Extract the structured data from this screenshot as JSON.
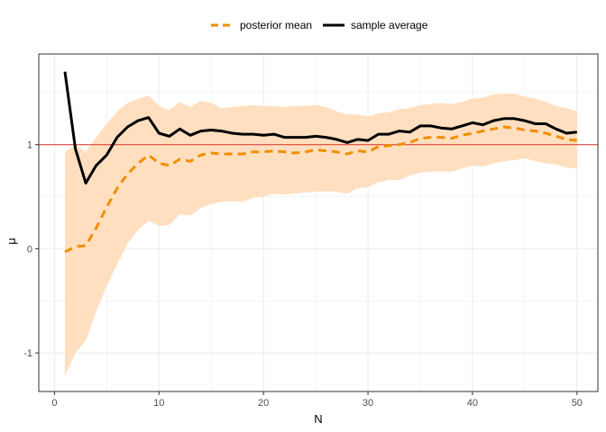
{
  "chart_data": {
    "type": "line",
    "title": "",
    "xlabel": "N",
    "ylabel": "μ",
    "xlim": [
      -1.5,
      52
    ],
    "ylim": [
      -1.37,
      1.87
    ],
    "x_ticks": [
      0,
      10,
      20,
      30,
      40,
      50
    ],
    "y_ticks": [
      -1,
      0,
      1
    ],
    "grid": true,
    "legend_position": "top",
    "reference_line": {
      "y": 1,
      "color": "#d73027"
    },
    "band": {
      "color": "#ffdfbf",
      "x": [
        1,
        2,
        3,
        4,
        5,
        6,
        7,
        8,
        9,
        10,
        11,
        12,
        13,
        14,
        15,
        16,
        17,
        18,
        19,
        20,
        21,
        22,
        23,
        24,
        25,
        26,
        27,
        28,
        29,
        30,
        31,
        32,
        33,
        34,
        35,
        36,
        37,
        38,
        39,
        40,
        41,
        42,
        43,
        44,
        45,
        46,
        47,
        48,
        49,
        50
      ],
      "lower": [
        -1.22,
        -1.0,
        -0.88,
        -0.6,
        -0.36,
        -0.15,
        0.05,
        0.18,
        0.27,
        0.22,
        0.23,
        0.33,
        0.32,
        0.39,
        0.43,
        0.45,
        0.46,
        0.45,
        0.49,
        0.5,
        0.53,
        0.52,
        0.53,
        0.54,
        0.55,
        0.55,
        0.55,
        0.53,
        0.58,
        0.59,
        0.64,
        0.66,
        0.66,
        0.7,
        0.73,
        0.74,
        0.74,
        0.74,
        0.77,
        0.8,
        0.79,
        0.82,
        0.84,
        0.85,
        0.87,
        0.84,
        0.82,
        0.81,
        0.78,
        0.77
      ],
      "upper": [
        0.93,
        1.0,
        0.93,
        1.07,
        1.2,
        1.32,
        1.4,
        1.44,
        1.47,
        1.37,
        1.33,
        1.41,
        1.36,
        1.42,
        1.4,
        1.35,
        1.36,
        1.37,
        1.38,
        1.37,
        1.37,
        1.36,
        1.37,
        1.37,
        1.38,
        1.36,
        1.32,
        1.29,
        1.29,
        1.27,
        1.3,
        1.31,
        1.34,
        1.35,
        1.38,
        1.39,
        1.4,
        1.39,
        1.41,
        1.44,
        1.45,
        1.48,
        1.49,
        1.49,
        1.46,
        1.44,
        1.41,
        1.37,
        1.35,
        1.32
      ]
    },
    "series": [
      {
        "name": "posterior mean",
        "color": "#f28e00",
        "dash": "dashed",
        "x": [
          1,
          2,
          3,
          4,
          5,
          6,
          7,
          8,
          9,
          10,
          11,
          12,
          13,
          14,
          15,
          16,
          17,
          18,
          19,
          20,
          21,
          22,
          23,
          24,
          25,
          26,
          27,
          28,
          29,
          30,
          31,
          32,
          33,
          34,
          35,
          36,
          37,
          38,
          39,
          40,
          41,
          42,
          43,
          44,
          45,
          46,
          47,
          48,
          49,
          50
        ],
        "values": [
          -0.03,
          0.02,
          0.03,
          0.2,
          0.4,
          0.58,
          0.72,
          0.82,
          0.9,
          0.82,
          0.8,
          0.86,
          0.84,
          0.9,
          0.92,
          0.91,
          0.91,
          0.91,
          0.93,
          0.93,
          0.94,
          0.93,
          0.92,
          0.93,
          0.95,
          0.94,
          0.93,
          0.91,
          0.94,
          0.93,
          0.98,
          0.99,
          1.0,
          1.02,
          1.06,
          1.07,
          1.07,
          1.06,
          1.09,
          1.11,
          1.13,
          1.15,
          1.17,
          1.16,
          1.14,
          1.13,
          1.11,
          1.08,
          1.05,
          1.04
        ]
      },
      {
        "name": "sample average",
        "color": "#000000",
        "dash": "solid",
        "x": [
          1,
          2,
          3,
          4,
          5,
          6,
          7,
          8,
          9,
          10,
          11,
          12,
          13,
          14,
          15,
          16,
          17,
          18,
          19,
          20,
          21,
          22,
          23,
          24,
          25,
          26,
          27,
          28,
          29,
          30,
          31,
          32,
          33,
          34,
          35,
          36,
          37,
          38,
          39,
          40,
          41,
          42,
          43,
          44,
          45,
          46,
          47,
          48,
          49,
          50
        ],
        "values": [
          1.7,
          0.96,
          0.63,
          0.8,
          0.9,
          1.07,
          1.17,
          1.23,
          1.26,
          1.11,
          1.08,
          1.15,
          1.09,
          1.13,
          1.14,
          1.13,
          1.11,
          1.1,
          1.1,
          1.09,
          1.1,
          1.07,
          1.07,
          1.07,
          1.08,
          1.07,
          1.05,
          1.02,
          1.05,
          1.04,
          1.1,
          1.1,
          1.13,
          1.12,
          1.18,
          1.18,
          1.16,
          1.15,
          1.18,
          1.21,
          1.19,
          1.23,
          1.25,
          1.25,
          1.23,
          1.2,
          1.2,
          1.15,
          1.11,
          1.12
        ]
      }
    ]
  }
}
